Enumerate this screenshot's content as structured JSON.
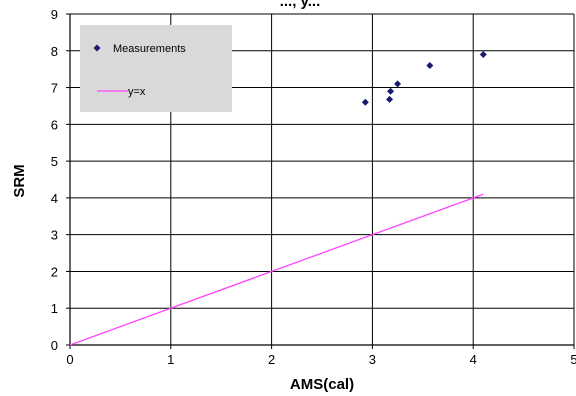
{
  "chart_data": {
    "type": "scatter",
    "title": "..., y...",
    "xlabel": "AMS(cal)",
    "ylabel": "SRM",
    "xlim": [
      0,
      5
    ],
    "ylim": [
      0,
      9
    ],
    "x_ticks": [
      "0",
      "1",
      "2",
      "3",
      "4",
      "5"
    ],
    "y_ticks": [
      "0",
      "1",
      "2",
      "3",
      "4",
      "5",
      "6",
      "7",
      "8",
      "9"
    ],
    "grid": true,
    "legend_position": "top-left",
    "series": [
      {
        "name": "Measurements",
        "kind": "scatter",
        "marker": "diamond",
        "color": "#1a1a6e",
        "points": [
          {
            "x": 2.93,
            "y": 6.6
          },
          {
            "x": 3.17,
            "y": 6.68
          },
          {
            "x": 3.18,
            "y": 6.9
          },
          {
            "x": 3.25,
            "y": 7.1
          },
          {
            "x": 3.57,
            "y": 7.6
          },
          {
            "x": 4.1,
            "y": 7.9
          }
        ]
      },
      {
        "name": "y=x",
        "kind": "line",
        "color": "#ff44ff",
        "points": [
          {
            "x": 0,
            "y": 0
          },
          {
            "x": 4.1,
            "y": 4.1
          }
        ]
      }
    ],
    "colors": {
      "grid": "#000000",
      "legend_background": "#d9d9d9"
    }
  }
}
